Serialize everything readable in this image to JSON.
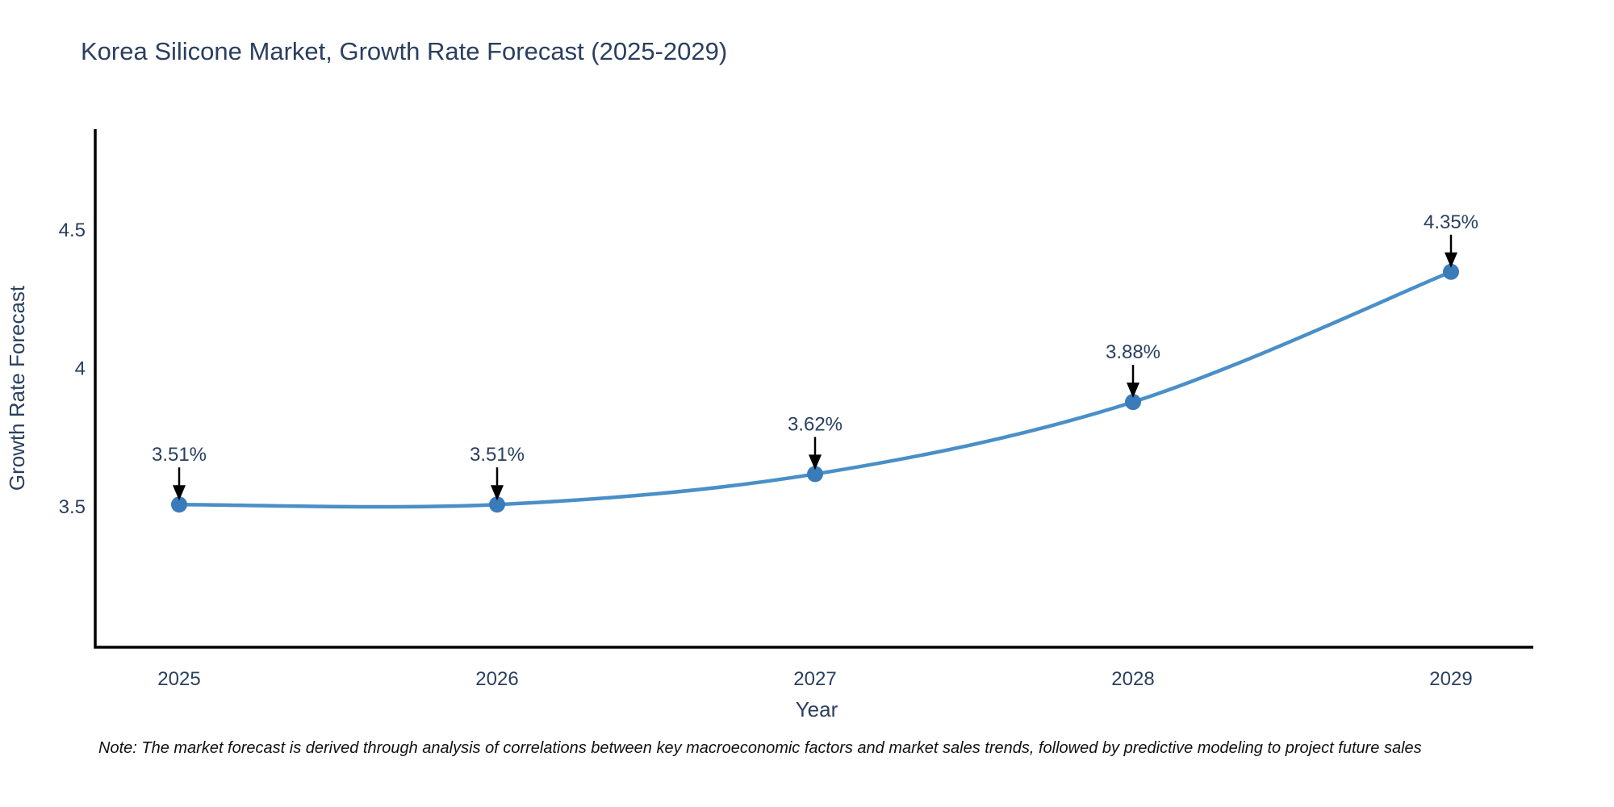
{
  "page": {
    "title": "Korea Silicone Market, Growth Rate Forecast (2025-2029)",
    "note": "Note: The market forecast is derived through analysis of correlations between key macroeconomic factors and market sales trends, followed by predictive modeling to project future sales"
  },
  "chart_data": {
    "type": "line",
    "title": "Korea Silicone Market, Growth Rate Forecast (2025-2029)",
    "x": [
      2025,
      2026,
      2027,
      2028,
      2029
    ],
    "x_tick_labels": [
      "2025",
      "2026",
      "2027",
      "2028",
      "2029"
    ],
    "y": [
      3.51,
      3.51,
      3.62,
      3.88,
      4.35
    ],
    "point_labels": [
      "3.51%",
      "3.51%",
      "3.62%",
      "3.88%",
      "4.35%"
    ],
    "xlabel": "Year",
    "ylabel": "Growth Rate Forecast",
    "yticks": [
      3.5,
      4.0,
      4.5
    ],
    "y_tick_labels": [
      "3.5",
      "4",
      "4.5"
    ],
    "ylim": [
      2.995,
      4.865
    ],
    "line_shape": "spline",
    "grid": false,
    "legend": "none",
    "colors": {
      "line": "#4a8fc7",
      "marker": "#3a7cba",
      "axis": "#000000",
      "text": "#2a3f5f",
      "annotation_arrow": "#000000",
      "background": "#ffffff"
    }
  }
}
